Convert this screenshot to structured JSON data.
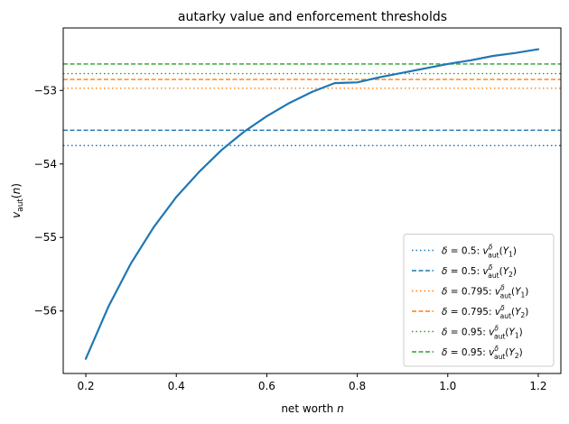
{
  "chart_data": {
    "type": "line",
    "title": "autarky value and enforcement thresholds",
    "xlabel": "net worth n",
    "ylabel": "v_aut(n)",
    "xlim": [
      0.15,
      1.25
    ],
    "ylim": [
      -56.85,
      -52.15
    ],
    "xticks": [
      0.2,
      0.4,
      0.6,
      0.8,
      1.0,
      1.2
    ],
    "xtick_labels": [
      "0.2",
      "0.4",
      "0.6",
      "0.8",
      "1.0",
      "1.2"
    ],
    "yticks": [
      -56,
      -55,
      -54,
      -53
    ],
    "ytick_labels": [
      "−56",
      "−55",
      "−54",
      "−53"
    ],
    "grid": false,
    "legend_position": "lower-right",
    "curve": {
      "color": "#1f77b4",
      "x": [
        0.2,
        0.25,
        0.3,
        0.35,
        0.4,
        0.45,
        0.5,
        0.55,
        0.6,
        0.65,
        0.7,
        0.75,
        0.8,
        0.85,
        0.9,
        0.95,
        1.0,
        1.05,
        1.1,
        1.15,
        1.2
      ],
      "y": [
        -56.65,
        -55.94,
        -55.35,
        -54.86,
        -54.45,
        -54.11,
        -53.81,
        -53.56,
        -53.35,
        -53.17,
        -53.02,
        -52.9,
        -52.89,
        -52.82,
        -52.76,
        -52.7,
        -52.64,
        -52.59,
        -52.53,
        -52.49,
        -52.44
      ]
    },
    "thresholds": [
      {
        "label": "δ = 0.5: vᵈ_aut(Y₁)",
        "delta": "0.5",
        "y_arg": "1",
        "value": -53.75,
        "color": "#1f77b4",
        "style": "dotted"
      },
      {
        "label": "δ = 0.5: vᵈ_aut(Y₂)",
        "delta": "0.5",
        "y_arg": "2",
        "value": -53.54,
        "color": "#1f77b4",
        "style": "dashed"
      },
      {
        "label": "δ = 0.795: vᵈ_aut(Y₁)",
        "delta": "0.795",
        "y_arg": "1",
        "value": -52.97,
        "color": "#ff7f0e",
        "style": "dotted"
      },
      {
        "label": "δ = 0.795: vᵈ_aut(Y₂)",
        "delta": "0.795",
        "y_arg": "2",
        "value": -52.85,
        "color": "#ff7f0e",
        "style": "dashed"
      },
      {
        "label": "δ = 0.95: vᵈ_aut(Y₁)",
        "delta": "0.95",
        "y_arg": "1",
        "value": -52.77,
        "color": "#2ca02c",
        "style": "dotted"
      },
      {
        "label": "δ = 0.95: vᵈ_aut(Y₂)",
        "delta": "0.95",
        "y_arg": "2",
        "value": -52.64,
        "color": "#2ca02c",
        "style": "dashed"
      }
    ]
  }
}
